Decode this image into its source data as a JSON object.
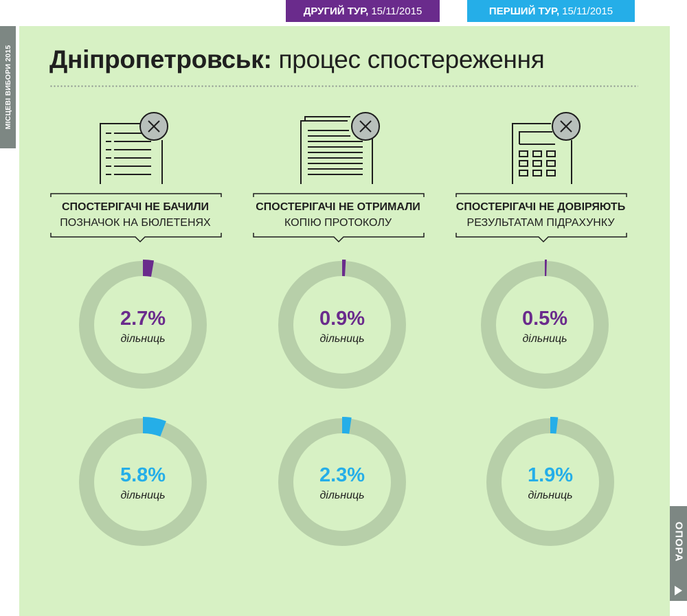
{
  "header": {
    "round2": {
      "label_bold": "ДРУГИЙ ТУР,",
      "label_date": "15/11/2015"
    },
    "round1": {
      "label_bold": "ПЕРШИЙ ТУР,",
      "label_date": "15/11/2015"
    }
  },
  "side_tab": "МІСЦЕВІ ВИБОРИ 2015",
  "brand": "ОПОРА",
  "title": {
    "bold": "Дніпропетровськ:",
    "normal": "процес спостереження"
  },
  "colors": {
    "round2": "#6a2b8c",
    "round1": "#25aee8",
    "ring": "#b7cfa9",
    "panel": "#d7f1c4"
  },
  "icons": [
    "ballot-list-icon",
    "protocol-document-icon",
    "calculator-icon"
  ],
  "chart_data": {
    "type": "donut",
    "unit": "дільниць",
    "categories": [
      {
        "line1": "СПОСТЕРІГАЧІ НЕ БАЧИЛИ",
        "line2": "ПОЗНАЧОК НА БЮЛЕТЕНЯХ"
      },
      {
        "line1": "СПОСТЕРІГАЧІ НЕ ОТРИМАЛИ",
        "line2": "КОПІЮ ПРОТОКОЛУ"
      },
      {
        "line1": "СПОСТЕРІГАЧІ НЕ ДОВІРЯЮТЬ",
        "line2": "РЕЗУЛЬТАТАМ ПІДРАХУНКУ"
      }
    ],
    "series": [
      {
        "name": "ДРУГИЙ ТУР, 15/11/2015",
        "values": [
          2.7,
          0.9,
          0.5
        ],
        "labels": [
          "2.7%",
          "0.9%",
          "0.5%"
        ],
        "color": "#6a2b8c"
      },
      {
        "name": "ПЕРШИЙ ТУР, 15/11/2015",
        "values": [
          5.8,
          2.3,
          1.9
        ],
        "labels": [
          "5.8%",
          "2.3%",
          "1.9%"
        ],
        "color": "#25aee8"
      }
    ],
    "range": [
      0,
      100
    ]
  }
}
